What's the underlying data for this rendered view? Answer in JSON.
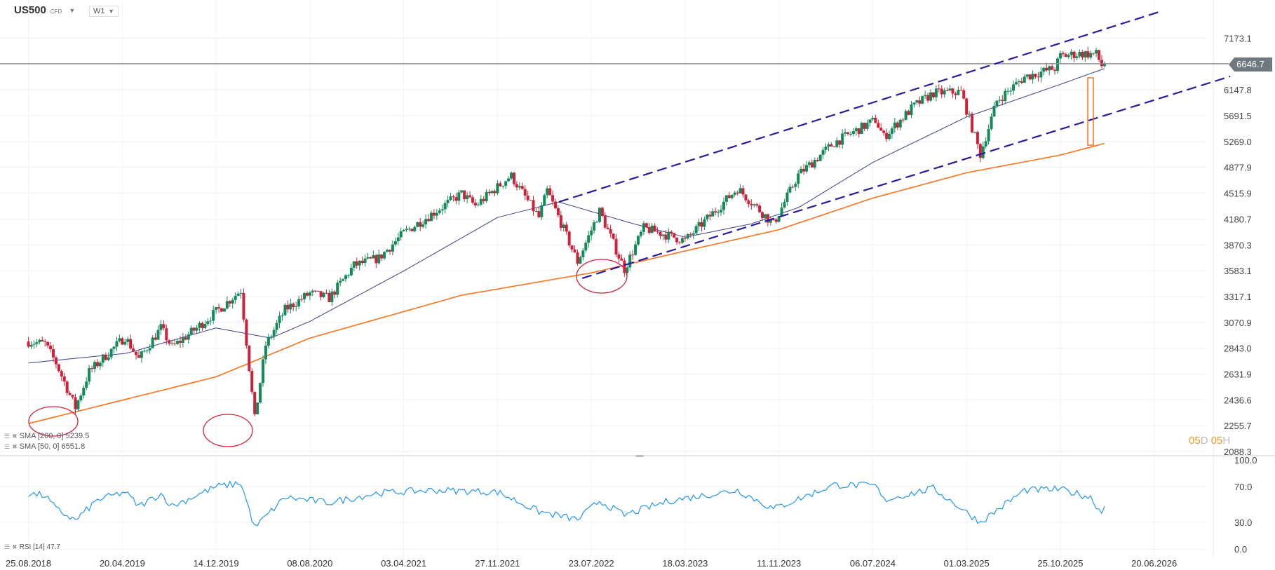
{
  "header": {
    "symbol": "US500",
    "type": "CFD",
    "timeframe": "W1"
  },
  "legend": {
    "sma200": "SMA [200, 0] 5239.5",
    "sma50": "SMA [50, 0] 6551.8",
    "rsi": "RSI [14] 47.7"
  },
  "countdown": {
    "d_num": "05",
    "d_unit": "D",
    "h_num": "05",
    "h_unit": "H"
  },
  "current_price": "6646.7",
  "colors": {
    "up": "#138a5a",
    "down": "#d0213a",
    "sma200": "#f7731e",
    "sma50": "#3a3f8f",
    "trendline": "#2a1a9e",
    "rsi": "#2196f3",
    "annotation": "#d0213a",
    "price_line": "#8a8f93"
  },
  "chart_data": [
    {
      "type": "candlestick",
      "scale": "log",
      "grid": true,
      "y_ticks": [
        "7173.1",
        "6147.8",
        "5691.5",
        "5269.0",
        "4877.9",
        "4515.9",
        "4180.7",
        "3870.3",
        "3583.1",
        "3317.1",
        "3070.9",
        "2843.0",
        "2631.9",
        "2436.6",
        "2255.7",
        "2088.3"
      ],
      "x_ticks": [
        "25.08.2018",
        "20.04.2019",
        "14.12.2019",
        "08.08.2020",
        "03.04.2021",
        "27.11.2021",
        "23.07.2022",
        "18.03.2023",
        "11.11.2023",
        "06.07.2024",
        "01.03.2025",
        "25.10.2025",
        "20.06.2026"
      ],
      "close_keypoints": [
        [
          "2018-08-25",
          2900
        ],
        [
          "2018-10-06",
          2880
        ],
        [
          "2018-11-03",
          2720
        ],
        [
          "2018-12-22",
          2380
        ],
        [
          "2019-01-26",
          2650
        ],
        [
          "2019-04-27",
          2940
        ],
        [
          "2019-06-01",
          2750
        ],
        [
          "2019-07-27",
          3020
        ],
        [
          "2019-08-24",
          2850
        ],
        [
          "2019-10-26",
          3020
        ],
        [
          "2019-12-14",
          3170
        ],
        [
          "2020-02-15",
          3380
        ],
        [
          "2020-03-21",
          2300
        ],
        [
          "2020-04-18",
          2870
        ],
        [
          "2020-06-06",
          3190
        ],
        [
          "2020-08-08",
          3350
        ],
        [
          "2020-09-26",
          3300
        ],
        [
          "2020-11-28",
          3640
        ],
        [
          "2021-01-30",
          3720
        ],
        [
          "2021-04-03",
          4010
        ],
        [
          "2021-08-28",
          4510
        ],
        [
          "2021-10-02",
          4350
        ],
        [
          "2021-12-31",
          4760
        ],
        [
          "2022-03-12",
          4200
        ],
        [
          "2022-04-02",
          4550
        ],
        [
          "2022-06-18",
          3680
        ],
        [
          "2022-08-13",
          4280
        ],
        [
          "2022-10-15",
          3600
        ],
        [
          "2022-12-03",
          4070
        ],
        [
          "2023-03-18",
          3920
        ],
        [
          "2023-07-29",
          4580
        ],
        [
          "2023-10-28",
          4120
        ],
        [
          "2023-12-30",
          4770
        ],
        [
          "2024-03-30",
          5250
        ],
        [
          "2024-07-13",
          5620
        ],
        [
          "2024-08-03",
          5340
        ],
        [
          "2024-10-19",
          5860
        ],
        [
          "2024-12-07",
          6090
        ],
        [
          "2025-02-15",
          6110
        ],
        [
          "2025-04-05",
          5070
        ],
        [
          "2025-05-17",
          5950
        ],
        [
          "2025-07-26",
          6390
        ],
        [
          "2025-10-11",
          6560
        ],
        [
          "2025-10-25",
          6800
        ],
        [
          "2025-12-13",
          6850
        ],
        [
          "2026-01-24",
          6840
        ],
        [
          "2026-02-07",
          6610
        ],
        [
          "2026-02-14",
          6646.7
        ]
      ],
      "sma200_keypoints": [
        [
          "2018-08-25",
          2270
        ],
        [
          "2019-12-14",
          2610
        ],
        [
          "2020-08-08",
          2930
        ],
        [
          "2021-08-28",
          3330
        ],
        [
          "2022-07-23",
          3560
        ],
        [
          "2023-03-18",
          3800
        ],
        [
          "2023-11-11",
          4050
        ],
        [
          "2024-07-06",
          4450
        ],
        [
          "2025-03-01",
          4800
        ],
        [
          "2025-10-25",
          5060
        ],
        [
          "2026-02-14",
          5239.5
        ]
      ],
      "sma50_keypoints": [
        [
          "2018-08-25",
          2720
        ],
        [
          "2019-05-01",
          2800
        ],
        [
          "2019-12-14",
          3020
        ],
        [
          "2020-05-01",
          2930
        ],
        [
          "2020-08-08",
          3080
        ],
        [
          "2021-04-03",
          3580
        ],
        [
          "2021-11-27",
          4200
        ],
        [
          "2022-05-01",
          4400
        ],
        [
          "2022-11-01",
          4130
        ],
        [
          "2023-03-18",
          3960
        ],
        [
          "2023-09-01",
          4120
        ],
        [
          "2024-01-01",
          4330
        ],
        [
          "2024-07-06",
          4950
        ],
        [
          "2025-03-01",
          5670
        ],
        [
          "2025-10-25",
          6250
        ],
        [
          "2026-02-14",
          6551.8
        ]
      ],
      "trendlines": [
        {
          "from": [
            "2022-05-02",
            4400
          ],
          "to": [
            "2026-07-08",
            7775
          ]
        },
        {
          "from": [
            "2022-06-30",
            3503
          ],
          "to": [
            "2026-12-30",
            6400
          ]
        }
      ]
    },
    {
      "type": "line",
      "name": "RSI [14]",
      "y_ticks": [
        "100.0",
        "70.0",
        "30.0",
        "0.0"
      ],
      "ylim": [
        0,
        100
      ],
      "keypoints": [
        [
          "2018-08-25",
          62
        ],
        [
          "2018-10-06",
          60
        ],
        [
          "2018-11-03",
          45
        ],
        [
          "2018-12-22",
          32
        ],
        [
          "2019-02-16",
          55
        ],
        [
          "2019-04-27",
          64
        ],
        [
          "2019-06-01",
          48
        ],
        [
          "2019-07-27",
          62
        ],
        [
          "2019-08-24",
          48
        ],
        [
          "2019-12-14",
          70
        ],
        [
          "2020-02-15",
          74
        ],
        [
          "2020-03-21",
          24
        ],
        [
          "2020-06-06",
          58
        ],
        [
          "2020-09-26",
          52
        ],
        [
          "2021-01-30",
          63
        ],
        [
          "2021-06-19",
          66
        ],
        [
          "2021-11-27",
          64
        ],
        [
          "2022-03-12",
          42
        ],
        [
          "2022-06-18",
          33
        ],
        [
          "2022-08-13",
          54
        ],
        [
          "2022-10-15",
          38
        ],
        [
          "2023-02-04",
          54
        ],
        [
          "2023-07-29",
          66
        ],
        [
          "2023-10-28",
          45
        ],
        [
          "2024-03-30",
          72
        ],
        [
          "2024-07-13",
          71
        ],
        [
          "2024-08-03",
          55
        ],
        [
          "2024-12-07",
          68
        ],
        [
          "2025-04-05",
          30
        ],
        [
          "2025-07-26",
          66
        ],
        [
          "2025-10-25",
          67
        ],
        [
          "2026-01-10",
          58
        ],
        [
          "2026-02-07",
          40
        ],
        [
          "2026-02-14",
          47.7
        ]
      ]
    }
  ]
}
